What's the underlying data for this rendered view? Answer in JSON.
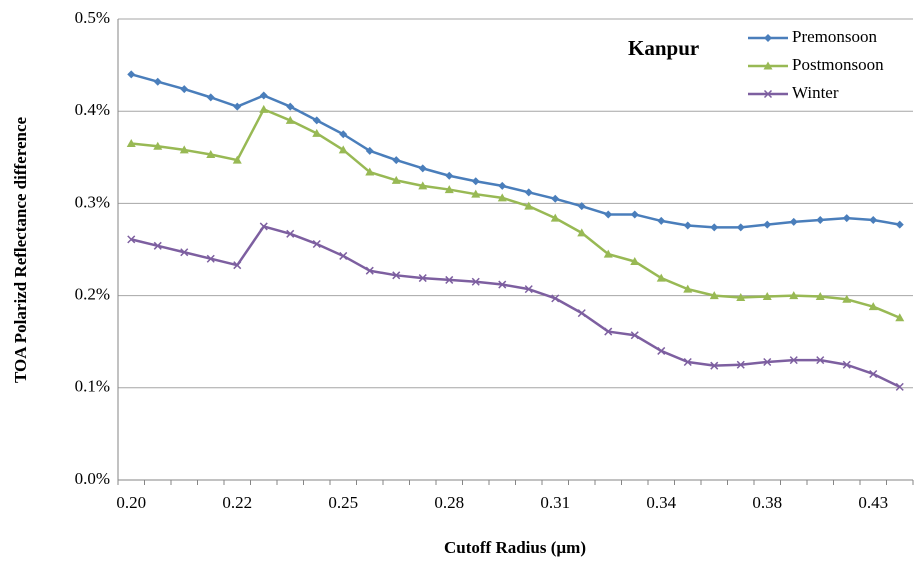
{
  "chart_data": {
    "type": "line",
    "annotation": "Kanpur",
    "x_label": "Cutoff Radius (µm)",
    "y_label": "TOA Polarizd Reflectance  difference",
    "categories": [
      "0.20",
      null,
      null,
      null,
      "0.22",
      null,
      null,
      null,
      "0.25",
      null,
      null,
      null,
      "0.28",
      null,
      null,
      null,
      "0.31",
      null,
      null,
      null,
      "0.34",
      null,
      null,
      null,
      "0.38",
      null,
      null,
      null,
      "0.43",
      null
    ],
    "series": [
      {
        "name": "Premonsoon",
        "color": "#4a7ebb",
        "marker": "diamond",
        "values": [
          0.44,
          0.432,
          0.424,
          0.415,
          0.405,
          0.417,
          0.405,
          0.39,
          0.375,
          0.357,
          0.347,
          0.338,
          0.33,
          0.324,
          0.319,
          0.312,
          0.305,
          0.297,
          0.288,
          0.288,
          0.281,
          0.276,
          0.274,
          0.274,
          0.277,
          0.28,
          0.282,
          0.284,
          0.282,
          0.277
        ]
      },
      {
        "name": "Postmonsoon",
        "color": "#98b954",
        "marker": "triangle",
        "values": [
          0.365,
          0.362,
          0.358,
          0.353,
          0.347,
          0.402,
          0.39,
          0.376,
          0.358,
          0.334,
          0.325,
          0.319,
          0.315,
          0.31,
          0.306,
          0.297,
          0.284,
          0.268,
          0.245,
          0.237,
          0.219,
          0.207,
          0.2,
          0.198,
          0.199,
          0.2,
          0.199,
          0.196,
          0.188,
          0.176
        ]
      },
      {
        "name": "Winter",
        "color": "#7d5fa0",
        "marker": "x",
        "values": [
          0.261,
          0.254,
          0.247,
          0.24,
          0.233,
          0.275,
          0.267,
          0.256,
          0.243,
          0.227,
          0.222,
          0.219,
          0.217,
          0.215,
          0.212,
          0.207,
          0.197,
          0.181,
          0.161,
          0.157,
          0.14,
          0.128,
          0.124,
          0.125,
          0.128,
          0.13,
          0.13,
          0.125,
          0.115,
          0.101
        ]
      }
    ],
    "ylim": [
      0,
      0.5
    ],
    "yticks": [
      {
        "value": 0,
        "label": "0.0%"
      },
      {
        "value": 0.1,
        "label": "0.1%"
      },
      {
        "value": 0.2,
        "label": "0.2%"
      },
      {
        "value": 0.3,
        "label": "0.3%"
      },
      {
        "value": 0.4,
        "label": "0.4%"
      },
      {
        "value": 0.5,
        "label": "0.5%"
      }
    ],
    "grid": true,
    "legend": "top-right"
  }
}
